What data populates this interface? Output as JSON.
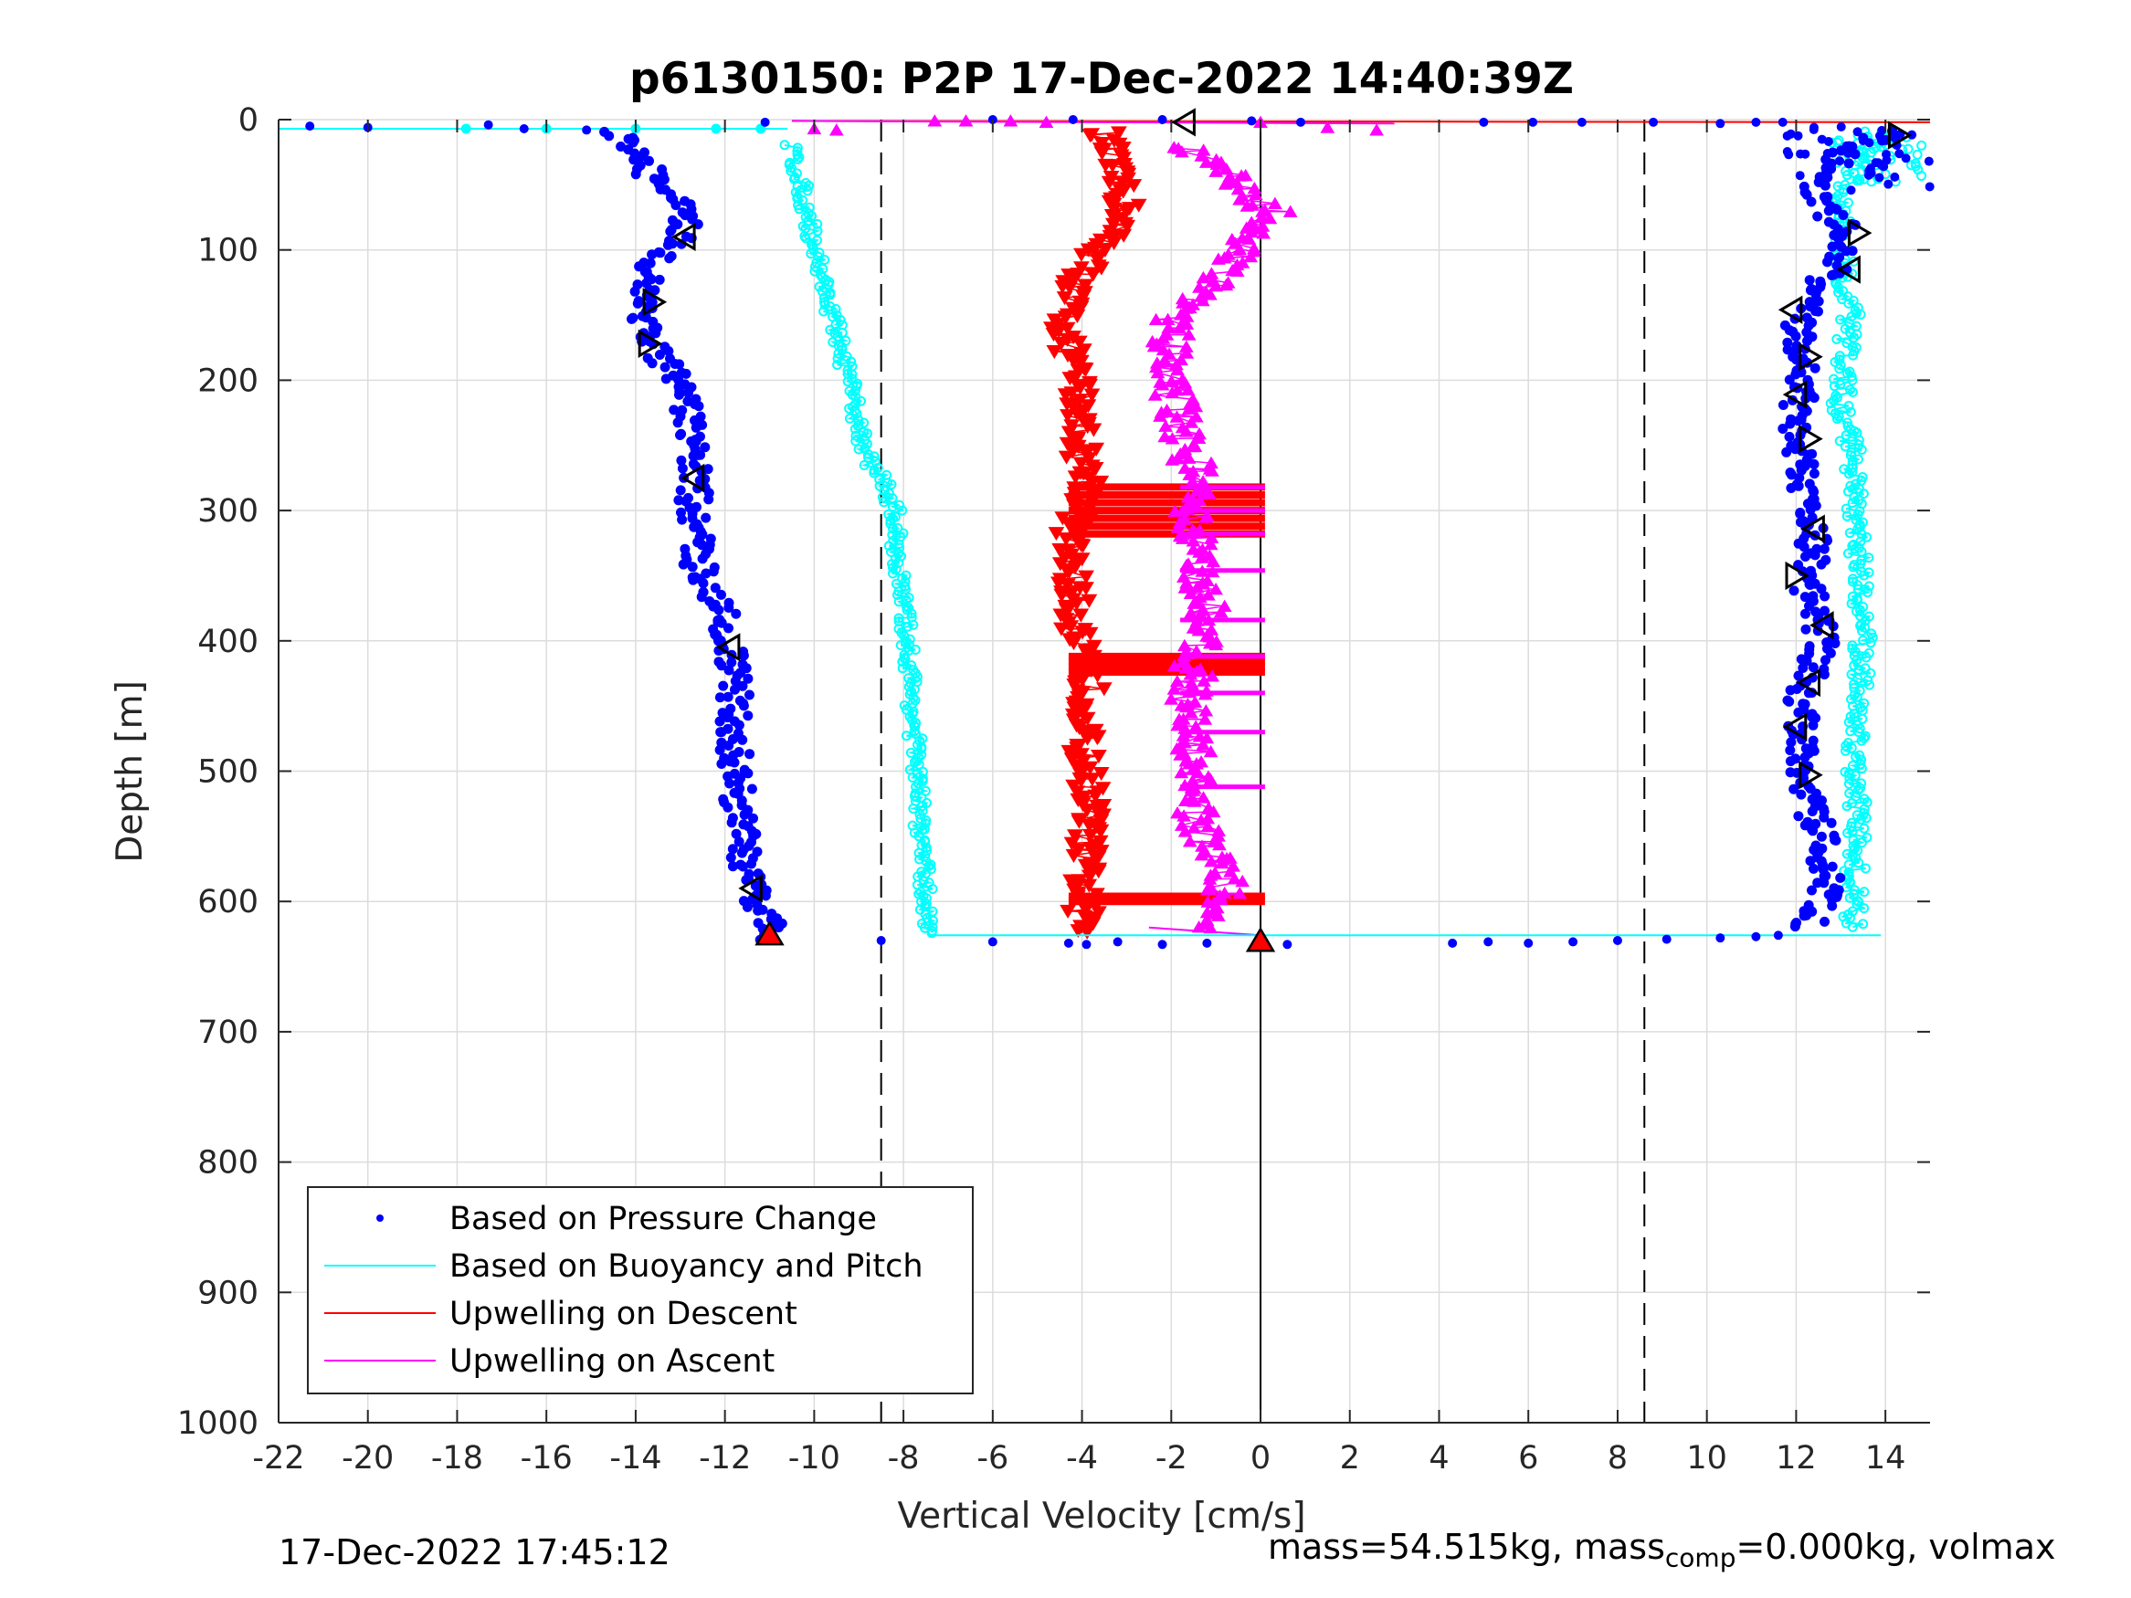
{
  "chart_data": {
    "type": "scatter",
    "title": "p6130150: P2P 17-Dec-2022 14:40:39Z",
    "xlabel": "Vertical Velocity [cm/s]",
    "ylabel": "Depth [m]",
    "xlim": [
      -22,
      15
    ],
    "ylim": [
      0,
      1000
    ],
    "y_reversed": true,
    "grid": true,
    "xticks": [
      -22,
      -20,
      -18,
      -16,
      -14,
      -12,
      -10,
      -8,
      -6,
      -4,
      -2,
      0,
      2,
      4,
      6,
      8,
      10,
      12,
      14
    ],
    "yticks": [
      0,
      100,
      200,
      300,
      400,
      500,
      600,
      700,
      800,
      900,
      1000
    ],
    "xtick_labels": [
      "-22",
      "-20",
      "-18",
      "-16",
      "-14",
      "-12",
      "-10",
      "-8",
      "-6",
      "-4",
      "-2",
      "0",
      "2",
      "4",
      "6",
      "8",
      "10",
      "12",
      "14"
    ],
    "ytick_labels": [
      "0",
      "100",
      "200",
      "300",
      "400",
      "500",
      "600",
      "700",
      "800",
      "900",
      "1000"
    ],
    "reference_lines": {
      "dashed_x": [
        -8.5,
        8.6
      ],
      "solid_x": [
        0
      ],
      "solid_x_depth_range": [
        0,
        1000
      ]
    },
    "legend": {
      "placement": "bottom-left",
      "entries": [
        "Based on Pressure Change",
        "Based on Buoyancy and Pitch",
        "Upwelling on Descent",
        "Upwelling on Ascent"
      ]
    },
    "series": [
      {
        "name": "Based on Pressure Change",
        "color": "#0000ff",
        "marker": "dot",
        "descent_profile": [
          [
            -14.4,
            10
          ],
          [
            -14.0,
            25
          ],
          [
            -13.6,
            45
          ],
          [
            -13.0,
            70
          ],
          [
            -12.9,
            90
          ],
          [
            -13.6,
            110
          ],
          [
            -13.8,
            140
          ],
          [
            -13.7,
            170
          ],
          [
            -13.2,
            195
          ],
          [
            -12.8,
            230
          ],
          [
            -12.7,
            260
          ],
          [
            -12.7,
            300
          ],
          [
            -12.6,
            340
          ],
          [
            -12.0,
            380
          ],
          [
            -11.9,
            405
          ],
          [
            -11.8,
            440
          ],
          [
            -11.8,
            480
          ],
          [
            -11.7,
            520
          ],
          [
            -11.6,
            560
          ],
          [
            -11.4,
            590
          ],
          [
            -11.0,
            615
          ],
          [
            -11.0,
            628
          ]
        ],
        "ascent_profile": [
          [
            12.2,
            620
          ],
          [
            12.7,
            600
          ],
          [
            12.6,
            560
          ],
          [
            12.3,
            520
          ],
          [
            12.1,
            480
          ],
          [
            12.1,
            440
          ],
          [
            12.6,
            400
          ],
          [
            12.3,
            360
          ],
          [
            12.4,
            320
          ],
          [
            12.1,
            280
          ],
          [
            12.0,
            240
          ],
          [
            12.1,
            200
          ],
          [
            12.0,
            160
          ],
          [
            12.4,
            130
          ],
          [
            12.9,
            110
          ],
          [
            13.2,
            90
          ],
          [
            12.3,
            50
          ],
          [
            12.9,
            30
          ],
          [
            14.1,
            10
          ]
        ],
        "surface_points": [
          [
            -21.3,
            5
          ],
          [
            -20.0,
            6
          ],
          [
            -17.3,
            4
          ],
          [
            -16.5,
            7
          ],
          [
            -15.1,
            8
          ],
          [
            -11.1,
            2
          ],
          [
            -6.0,
            0
          ],
          [
            -4.2,
            0
          ],
          [
            -2.2,
            0
          ],
          [
            -0.2,
            1
          ],
          [
            0.9,
            2
          ],
          [
            5.0,
            2
          ],
          [
            6.1,
            2
          ],
          [
            7.2,
            2
          ],
          [
            8.8,
            2
          ],
          [
            10.3,
            3
          ],
          [
            11.1,
            2
          ],
          [
            11.7,
            2
          ],
          [
            12.4,
            6
          ]
        ],
        "bottom_points": [
          [
            -8.5,
            630
          ],
          [
            -6.0,
            631
          ],
          [
            -4.3,
            632
          ],
          [
            -3.9,
            633
          ],
          [
            -3.2,
            631
          ],
          [
            -2.2,
            633
          ],
          [
            -1.2,
            632
          ],
          [
            0.6,
            633
          ],
          [
            4.3,
            632
          ],
          [
            5.1,
            631
          ],
          [
            6.0,
            632
          ],
          [
            7.0,
            631
          ],
          [
            8.0,
            630
          ],
          [
            9.1,
            629
          ],
          [
            10.3,
            628
          ],
          [
            11.1,
            627
          ],
          [
            11.6,
            626
          ]
        ]
      },
      {
        "name": "Based on Buoyancy and Pitch",
        "color": "#00ffff",
        "marker": "circle-line",
        "descent_profile": [
          [
            -10.5,
            20
          ],
          [
            -10.3,
            50
          ],
          [
            -10.1,
            80
          ],
          [
            -9.9,
            110
          ],
          [
            -9.6,
            150
          ],
          [
            -9.3,
            190
          ],
          [
            -9.1,
            220
          ],
          [
            -8.8,
            260
          ],
          [
            -8.4,
            280
          ],
          [
            -8.2,
            300
          ],
          [
            -8.1,
            350
          ],
          [
            -7.9,
            400
          ],
          [
            -7.8,
            450
          ],
          [
            -7.7,
            500
          ],
          [
            -7.6,
            550
          ],
          [
            -7.5,
            600
          ],
          [
            -7.4,
            625
          ]
        ],
        "ascent_profile": [
          [
            13.3,
            620
          ],
          [
            13.3,
            580
          ],
          [
            13.4,
            540
          ],
          [
            13.3,
            500
          ],
          [
            13.4,
            460
          ],
          [
            13.5,
            420
          ],
          [
            13.5,
            380
          ],
          [
            13.4,
            340
          ],
          [
            13.3,
            300
          ],
          [
            13.3,
            260
          ],
          [
            13.0,
            220
          ],
          [
            13.1,
            180
          ],
          [
            13.2,
            150
          ],
          [
            13.1,
            120
          ],
          [
            13.0,
            90
          ],
          [
            13.0,
            60
          ],
          [
            13.5,
            30
          ],
          [
            14.0,
            10
          ]
        ],
        "surface_points": [
          [
            -17.8,
            7
          ],
          [
            -16.0,
            7
          ],
          [
            -14.0,
            7
          ],
          [
            -12.2,
            7
          ],
          [
            -11.2,
            7
          ]
        ]
      },
      {
        "name": "Upwelling on Descent",
        "color": "#ff0000",
        "marker": "triangle-down",
        "profile": [
          [
            -3.5,
            10
          ],
          [
            -3.3,
            40
          ],
          [
            -3.0,
            70
          ],
          [
            -3.6,
            100
          ],
          [
            -4.2,
            130
          ],
          [
            -4.4,
            160
          ],
          [
            -4.2,
            190
          ],
          [
            -4.0,
            220
          ],
          [
            -4.0,
            260
          ],
          [
            -3.8,
            280
          ],
          [
            -4.3,
            320
          ],
          [
            -4.2,
            360
          ],
          [
            -4.1,
            400
          ],
          [
            -3.8,
            440
          ],
          [
            -4.0,
            480
          ],
          [
            -3.8,
            520
          ],
          [
            -3.9,
            560
          ],
          [
            -4.0,
            600
          ],
          [
            -3.9,
            625
          ]
        ],
        "spikes_depth": [
          282,
          288,
          294,
          300,
          306,
          312,
          318,
          412,
          416,
          420,
          424,
          596,
          600
        ]
      },
      {
        "name": "Upwelling on Ascent",
        "color": "#ff00ff",
        "marker": "triangle-up",
        "profile": [
          [
            -1.0,
            620
          ],
          [
            -0.8,
            580
          ],
          [
            -1.4,
            540
          ],
          [
            -1.5,
            500
          ],
          [
            -1.6,
            460
          ],
          [
            -1.5,
            420
          ],
          [
            -1.2,
            390
          ],
          [
            -1.3,
            350
          ],
          [
            -1.6,
            310
          ],
          [
            -1.5,
            270
          ],
          [
            -1.8,
            230
          ],
          [
            -2.1,
            190
          ],
          [
            -1.9,
            150
          ],
          [
            -0.9,
            120
          ],
          [
            -0.4,
            90
          ],
          [
            0.3,
            70
          ],
          [
            -0.8,
            40
          ],
          [
            -1.9,
            20
          ]
        ],
        "spikes_depth": [
          282,
          300,
          318,
          346,
          384,
          412,
          440,
          470,
          512
        ],
        "surface_points": [
          [
            -10.0,
            7
          ],
          [
            -9.5,
            8
          ],
          [
            -7.3,
            1
          ],
          [
            -6.6,
            1
          ],
          [
            -5.6,
            1
          ],
          [
            -4.8,
            2
          ],
          [
            0.0,
            2
          ],
          [
            1.5,
            6
          ],
          [
            2.6,
            8
          ]
        ]
      }
    ],
    "markers": {
      "left_pointing": [
        [
          -12.9,
          90
        ],
        [
          -12.7,
          275
        ],
        [
          -11.9,
          405
        ],
        [
          -11.4,
          590
        ],
        [
          -1.7,
          2
        ],
        [
          12.6,
          388
        ],
        [
          12.3,
          432
        ],
        [
          12.0,
          466
        ],
        [
          12.4,
          314
        ],
        [
          11.9,
          146
        ],
        [
          12.0,
          211
        ],
        [
          13.2,
          115
        ]
      ],
      "right_pointing": [
        [
          -13.6,
          140
        ],
        [
          -13.7,
          172
        ],
        [
          14.3,
          12
        ],
        [
          13.4,
          87
        ],
        [
          12.3,
          182
        ],
        [
          12.3,
          245
        ],
        [
          12.3,
          503
        ],
        [
          12.0,
          350
        ]
      ],
      "red_up_triangle": [
        [
          0.0,
          630
        ],
        [
          -11.0,
          625
        ]
      ]
    }
  },
  "footer": {
    "left_text": "17-Dec-2022 17:45:12",
    "right_prefix": "mass=54.515kg, mass",
    "right_sub": "comp",
    "right_suffix": "=0.000kg, volmax"
  }
}
